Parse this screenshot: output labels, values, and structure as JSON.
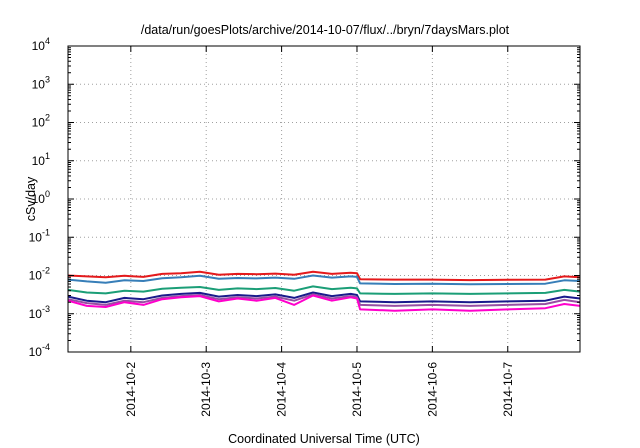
{
  "chart_data": {
    "type": "line",
    "title": "/data/run/goesPlots/archive/2014-10-07/flux/../bryn/7daysMars.plot",
    "xlabel": "Coordinated Universal Time (UTC)",
    "ylabel": "cSv/day",
    "yscale": "log",
    "ylim": [
      0.0001,
      10000
    ],
    "y_ticks": [
      {
        "base": "10",
        "exp": "-4",
        "value": 0.0001
      },
      {
        "base": "10",
        "exp": "-3",
        "value": 0.001
      },
      {
        "base": "10",
        "exp": "-2",
        "value": 0.01
      },
      {
        "base": "10",
        "exp": "-1",
        "value": 0.1
      },
      {
        "base": "10",
        "exp": "0",
        "value": 1
      },
      {
        "base": "10",
        "exp": "1",
        "value": 10
      },
      {
        "base": "10",
        "exp": "2",
        "value": 100
      },
      {
        "base": "10",
        "exp": "3",
        "value": 1000
      },
      {
        "base": "10",
        "exp": "4",
        "value": 10000
      }
    ],
    "xlim": [
      "2014-10-01T04:00",
      "2014-10-07T23:00"
    ],
    "x_ticks": [
      "2014-10-2",
      "2014-10-3",
      "2014-10-4",
      "2014-10-5",
      "2014-10-6",
      "2014-10-7"
    ],
    "grid": true,
    "legend": "none",
    "series": [
      {
        "color": "#e41a1c",
        "points": [
          [
            "2014-10-01T04:00",
            0.01
          ],
          [
            "2014-10-01T10:00",
            0.0095
          ],
          [
            "2014-10-01T16:00",
            0.009
          ],
          [
            "2014-10-01T22:00",
            0.0098
          ],
          [
            "2014-10-02T04:00",
            0.0092
          ],
          [
            "2014-10-02T10:00",
            0.011
          ],
          [
            "2014-10-02T16:00",
            0.0115
          ],
          [
            "2014-10-02T22:00",
            0.0125
          ],
          [
            "2014-10-03T04:00",
            0.0105
          ],
          [
            "2014-10-03T10:00",
            0.011
          ],
          [
            "2014-10-03T16:00",
            0.0108
          ],
          [
            "2014-10-03T22:00",
            0.0112
          ],
          [
            "2014-10-04T04:00",
            0.0105
          ],
          [
            "2014-10-04T10:00",
            0.0125
          ],
          [
            "2014-10-04T16:00",
            0.011
          ],
          [
            "2014-10-04T22:00",
            0.0118
          ],
          [
            "2014-10-05T00:00",
            0.0115
          ],
          [
            "2014-10-05T01:00",
            0.008
          ],
          [
            "2014-10-05T12:00",
            0.0078
          ],
          [
            "2014-10-06T00:00",
            0.0078
          ],
          [
            "2014-10-06T12:00",
            0.0076
          ],
          [
            "2014-10-07T00:00",
            0.0077
          ],
          [
            "2014-10-07T12:00",
            0.0078
          ],
          [
            "2014-10-07T18:00",
            0.0095
          ],
          [
            "2014-10-07T23:00",
            0.009
          ]
        ]
      },
      {
        "color": "#377eb8",
        "points": [
          [
            "2014-10-01T04:00",
            0.0078
          ],
          [
            "2014-10-01T10:00",
            0.007
          ],
          [
            "2014-10-01T16:00",
            0.0065
          ],
          [
            "2014-10-01T22:00",
            0.0075
          ],
          [
            "2014-10-02T04:00",
            0.0072
          ],
          [
            "2014-10-02T10:00",
            0.0085
          ],
          [
            "2014-10-02T16:00",
            0.009
          ],
          [
            "2014-10-02T22:00",
            0.0098
          ],
          [
            "2014-10-03T04:00",
            0.0082
          ],
          [
            "2014-10-03T10:00",
            0.0086
          ],
          [
            "2014-10-03T16:00",
            0.0084
          ],
          [
            "2014-10-03T22:00",
            0.0088
          ],
          [
            "2014-10-04T04:00",
            0.0082
          ],
          [
            "2014-10-04T10:00",
            0.01
          ],
          [
            "2014-10-04T16:00",
            0.0088
          ],
          [
            "2014-10-04T22:00",
            0.0095
          ],
          [
            "2014-10-05T00:00",
            0.0092
          ],
          [
            "2014-10-05T01:00",
            0.0062
          ],
          [
            "2014-10-05T12:00",
            0.006
          ],
          [
            "2014-10-06T00:00",
            0.0061
          ],
          [
            "2014-10-06T12:00",
            0.0059
          ],
          [
            "2014-10-07T00:00",
            0.006
          ],
          [
            "2014-10-07T12:00",
            0.0061
          ],
          [
            "2014-10-07T18:00",
            0.0075
          ],
          [
            "2014-10-07T23:00",
            0.0072
          ]
        ]
      },
      {
        "color": "#1b9e77",
        "points": [
          [
            "2014-10-01T04:00",
            0.0042
          ],
          [
            "2014-10-01T10:00",
            0.0036
          ],
          [
            "2014-10-01T16:00",
            0.0034
          ],
          [
            "2014-10-01T22:00",
            0.004
          ],
          [
            "2014-10-02T04:00",
            0.0038
          ],
          [
            "2014-10-02T10:00",
            0.0045
          ],
          [
            "2014-10-02T16:00",
            0.0048
          ],
          [
            "2014-10-02T22:00",
            0.005
          ],
          [
            "2014-10-03T04:00",
            0.0042
          ],
          [
            "2014-10-03T10:00",
            0.0046
          ],
          [
            "2014-10-03T16:00",
            0.0044
          ],
          [
            "2014-10-03T22:00",
            0.0047
          ],
          [
            "2014-10-04T04:00",
            0.004
          ],
          [
            "2014-10-04T10:00",
            0.0052
          ],
          [
            "2014-10-04T16:00",
            0.0044
          ],
          [
            "2014-10-04T22:00",
            0.0048
          ],
          [
            "2014-10-05T00:00",
            0.0046
          ],
          [
            "2014-10-05T01:00",
            0.0034
          ],
          [
            "2014-10-05T12:00",
            0.0033
          ],
          [
            "2014-10-06T00:00",
            0.0034
          ],
          [
            "2014-10-06T12:00",
            0.0033
          ],
          [
            "2014-10-07T00:00",
            0.0034
          ],
          [
            "2014-10-07T12:00",
            0.0035
          ],
          [
            "2014-10-07T18:00",
            0.0042
          ],
          [
            "2014-10-07T23:00",
            0.0038
          ]
        ]
      },
      {
        "color": "#1a1a8c",
        "points": [
          [
            "2014-10-01T04:00",
            0.0028
          ],
          [
            "2014-10-01T10:00",
            0.0022
          ],
          [
            "2014-10-01T16:00",
            0.002
          ],
          [
            "2014-10-01T22:00",
            0.0026
          ],
          [
            "2014-10-02T04:00",
            0.0024
          ],
          [
            "2014-10-02T10:00",
            0.003
          ],
          [
            "2014-10-02T16:00",
            0.0033
          ],
          [
            "2014-10-02T22:00",
            0.0035
          ],
          [
            "2014-10-03T04:00",
            0.0028
          ],
          [
            "2014-10-03T10:00",
            0.0031
          ],
          [
            "2014-10-03T16:00",
            0.0029
          ],
          [
            "2014-10-03T22:00",
            0.0032
          ],
          [
            "2014-10-04T04:00",
            0.0026
          ],
          [
            "2014-10-04T10:00",
            0.0036
          ],
          [
            "2014-10-04T16:00",
            0.0029
          ],
          [
            "2014-10-04T22:00",
            0.0033
          ],
          [
            "2014-10-05T00:00",
            0.0031
          ],
          [
            "2014-10-05T01:00",
            0.0021
          ],
          [
            "2014-10-05T12:00",
            0.002
          ],
          [
            "2014-10-06T00:00",
            0.0021
          ],
          [
            "2014-10-06T12:00",
            0.002
          ],
          [
            "2014-10-07T00:00",
            0.0021
          ],
          [
            "2014-10-07T12:00",
            0.0022
          ],
          [
            "2014-10-07T18:00",
            0.0028
          ],
          [
            "2014-10-07T23:00",
            0.0025
          ]
        ]
      },
      {
        "color": "#984ea3",
        "points": [
          [
            "2014-10-01T04:00",
            0.0024
          ],
          [
            "2014-10-01T10:00",
            0.0019
          ],
          [
            "2014-10-01T16:00",
            0.0017
          ],
          [
            "2014-10-01T22:00",
            0.0022
          ],
          [
            "2014-10-02T04:00",
            0.002
          ],
          [
            "2014-10-02T10:00",
            0.0026
          ],
          [
            "2014-10-02T16:00",
            0.0029
          ],
          [
            "2014-10-02T22:00",
            0.0031
          ],
          [
            "2014-10-03T04:00",
            0.0024
          ],
          [
            "2014-10-03T10:00",
            0.0027
          ],
          [
            "2014-10-03T16:00",
            0.0025
          ],
          [
            "2014-10-03T22:00",
            0.0028
          ],
          [
            "2014-10-04T04:00",
            0.0022
          ],
          [
            "2014-10-04T10:00",
            0.0032
          ],
          [
            "2014-10-04T16:00",
            0.0025
          ],
          [
            "2014-10-04T22:00",
            0.0029
          ],
          [
            "2014-10-05T00:00",
            0.0027
          ],
          [
            "2014-10-05T01:00",
            0.0017
          ],
          [
            "2014-10-05T12:00",
            0.0016
          ],
          [
            "2014-10-06T00:00",
            0.0017
          ],
          [
            "2014-10-06T12:00",
            0.0016
          ],
          [
            "2014-10-07T00:00",
            0.0017
          ],
          [
            "2014-10-07T12:00",
            0.0018
          ],
          [
            "2014-10-07T18:00",
            0.0023
          ],
          [
            "2014-10-07T23:00",
            0.002
          ]
        ]
      },
      {
        "color": "#ff00cc",
        "points": [
          [
            "2014-10-01T04:00",
            0.0022
          ],
          [
            "2014-10-01T10:00",
            0.0016
          ],
          [
            "2014-10-01T16:00",
            0.0015
          ],
          [
            "2014-10-01T22:00",
            0.002
          ],
          [
            "2014-10-02T04:00",
            0.0017
          ],
          [
            "2014-10-02T10:00",
            0.0024
          ],
          [
            "2014-10-02T16:00",
            0.0027
          ],
          [
            "2014-10-02T22:00",
            0.0029
          ],
          [
            "2014-10-03T04:00",
            0.0021
          ],
          [
            "2014-10-03T10:00",
            0.0025
          ],
          [
            "2014-10-03T16:00",
            0.0022
          ],
          [
            "2014-10-03T22:00",
            0.0026
          ],
          [
            "2014-10-04T04:00",
            0.0017
          ],
          [
            "2014-10-04T10:00",
            0.003
          ],
          [
            "2014-10-04T16:00",
            0.0022
          ],
          [
            "2014-10-04T22:00",
            0.0027
          ],
          [
            "2014-10-05T00:00",
            0.0025
          ],
          [
            "2014-10-05T01:00",
            0.0013
          ],
          [
            "2014-10-05T12:00",
            0.0012
          ],
          [
            "2014-10-06T00:00",
            0.0013
          ],
          [
            "2014-10-06T12:00",
            0.0012
          ],
          [
            "2014-10-07T00:00",
            0.0013
          ],
          [
            "2014-10-07T12:00",
            0.0014
          ],
          [
            "2014-10-07T18:00",
            0.0018
          ],
          [
            "2014-10-07T23:00",
            0.0016
          ]
        ]
      }
    ]
  }
}
